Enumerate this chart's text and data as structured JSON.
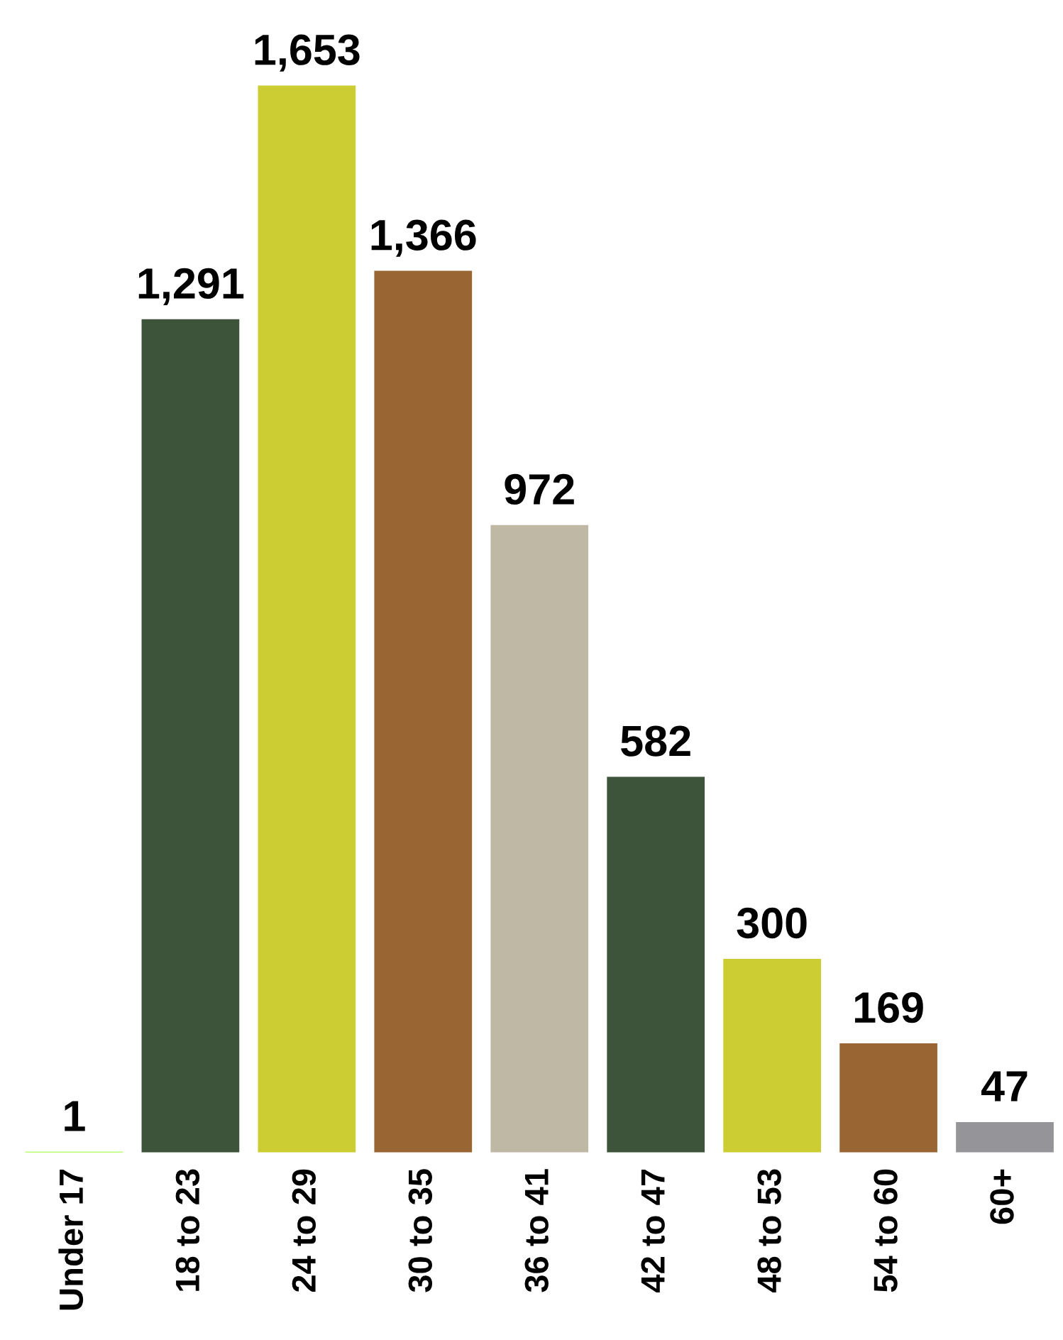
{
  "chart_data": {
    "type": "bar",
    "categories": [
      "Under 17",
      "18 to 23",
      "24 to 29",
      "30 to 35",
      "36 to 41",
      "42 to 47",
      "48 to 53",
      "54 to 60",
      "60+"
    ],
    "values": [
      1,
      1291,
      1653,
      1366,
      972,
      582,
      300,
      169,
      47
    ],
    "value_labels": [
      "1",
      "1,291",
      "1,653",
      "1,366",
      "972",
      "582",
      "300",
      "169",
      "47"
    ],
    "colors": [
      "#80ff00",
      "#3d533a",
      "#cccc33",
      "#996633",
      "#bfb8a4",
      "#3d533a",
      "#cccc33",
      "#996633",
      "#959599"
    ],
    "grid": false
  }
}
